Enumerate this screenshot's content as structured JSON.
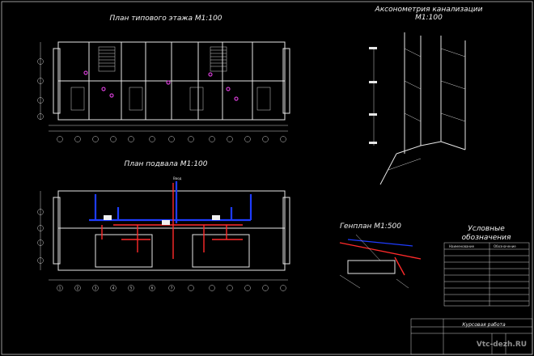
{
  "titles": {
    "typical_floor_plan": "План типового этажа М1:100",
    "basement_plan": "План подвала М1:100",
    "axonometry_line1": "Аксонометрия канализации",
    "axonometry_line2": "М1:100",
    "site_plan": "Генплан М1:500",
    "legend_line1": "Условные",
    "legend_line2": "обозначения"
  },
  "basement_input_label": "Ввод",
  "axis_labels": [
    "1",
    "2",
    "3",
    "4",
    "5",
    "6",
    "7",
    "8",
    "9",
    "10",
    "11",
    "12",
    "13",
    "14"
  ],
  "row_labels": [
    "А",
    "Б",
    "В",
    "Г",
    "Д"
  ],
  "legend_table": {
    "col1": "Наименование",
    "col2": "Обозначение"
  },
  "title_block": {
    "main": "Курсовая работа"
  },
  "watermark": "Vtc-dezh.RU",
  "colors": {
    "background": "#000000",
    "lines": "#e6e6e6",
    "sewer": "#ff2a2a",
    "water": "#1e3cff",
    "risers": "#d23cd2"
  }
}
